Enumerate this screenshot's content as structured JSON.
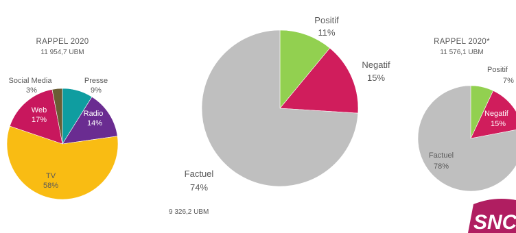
{
  "chart_data": [
    {
      "type": "pie",
      "title": "RAPPEL 2020",
      "subtitle": "11 954,7 UBM",
      "slices": [
        {
          "name": "Presse",
          "value": 9,
          "label": "9%",
          "color": "#0f9da0"
        },
        {
          "name": "Radio",
          "value": 14,
          "label": "14%",
          "color": "#6a2c91"
        },
        {
          "name": "TV",
          "value": 58,
          "label": "58%",
          "color": "#f9bc13"
        },
        {
          "name": "Web",
          "value": 17,
          "label": "17%",
          "color": "#c8175d"
        },
        {
          "name": "Social Media",
          "value": 3,
          "label": "3%",
          "color": "#6a5d34"
        }
      ]
    },
    {
      "type": "pie",
      "footer": "9 326,2 UBM",
      "slices": [
        {
          "name": "Positif",
          "value": 11,
          "label": "11%",
          "color": "#92d050"
        },
        {
          "name": "Negatif",
          "value": 15,
          "label": "15%",
          "color": "#d01d5c"
        },
        {
          "name": "Factuel",
          "value": 74,
          "label": "74%",
          "color": "#bfbfbf"
        }
      ]
    },
    {
      "type": "pie",
      "title": "RAPPEL 2020*",
      "subtitle": "11 576,1 UBM",
      "slices": [
        {
          "name": "Positif",
          "value": 7,
          "label": "7%",
          "color": "#92d050"
        },
        {
          "name": "Negatif",
          "value": 15,
          "label": "15%",
          "color": "#d01d5c"
        },
        {
          "name": "Factuel",
          "value": 78,
          "label": "78%",
          "color": "#bfbfbf"
        }
      ]
    }
  ],
  "logo": {
    "text": "SNCF",
    "color": "#b01e61"
  }
}
